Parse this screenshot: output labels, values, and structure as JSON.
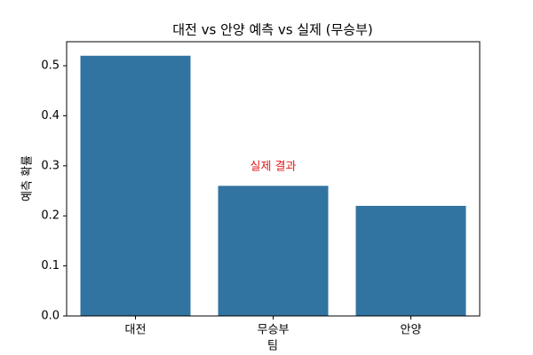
{
  "chart_data": {
    "type": "bar",
    "title": "대전 vs 안양 예측 vs 실제 (무승부)",
    "x_label": "팀",
    "y_label": "예측 확률",
    "categories": [
      "대전",
      "무승부",
      "안양"
    ],
    "values": [
      0.52,
      0.26,
      0.22
    ],
    "color": "#3274a1",
    "ylim": [
      0,
      0.548
    ],
    "yticks": [
      {
        "value": 0,
        "label": "0.0"
      },
      {
        "value": 0.1,
        "label": "0.1"
      },
      {
        "value": 0.2,
        "label": "0.2"
      },
      {
        "value": 0.3,
        "label": "0.3"
      },
      {
        "value": 0.4,
        "label": "0.4"
      },
      {
        "value": 0.5,
        "label": "0.5"
      }
    ],
    "grid": false,
    "annotations": [
      {
        "text": "실제 결과",
        "category": "무승부",
        "y": 0.28,
        "color": "#e41a1c"
      }
    ]
  }
}
